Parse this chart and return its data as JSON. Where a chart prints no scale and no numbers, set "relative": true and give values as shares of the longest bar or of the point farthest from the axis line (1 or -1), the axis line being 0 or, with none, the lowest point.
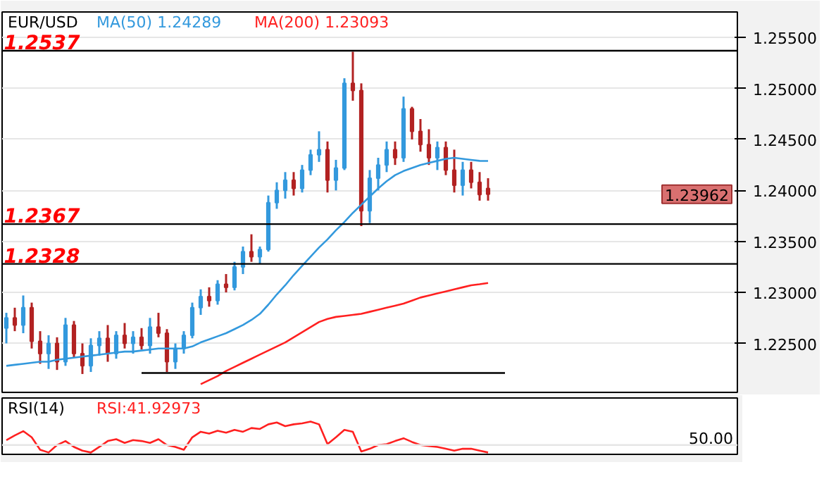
{
  "chart_data": [
    {
      "type": "candlestick",
      "title": "EUR/USD",
      "categories": [
        null,
        null,
        null,
        null,
        null,
        null,
        null,
        null,
        null,
        null,
        null,
        null,
        null,
        null,
        null,
        null,
        null,
        null,
        null,
        null,
        null,
        null,
        null,
        null,
        null,
        null,
        null,
        null,
        null,
        null,
        null,
        null,
        null,
        null,
        null,
        null,
        null,
        null,
        null,
        null,
        null,
        null,
        null,
        null,
        null,
        null,
        null,
        null,
        null,
        null,
        null,
        null,
        null,
        null,
        null,
        null,
        null,
        null,
        null,
        null,
        null,
        null,
        null,
        null,
        null,
        null,
        null,
        null,
        null,
        null,
        null,
        null,
        null,
        null,
        null,
        null,
        null,
        null,
        null,
        null,
        null,
        null,
        null,
        null,
        null,
        null,
        null
      ],
      "ohlc": [
        [
          1.2265,
          1.228,
          1.225,
          1.2275
        ],
        [
          1.2275,
          1.2285,
          1.2262,
          1.2268
        ],
        [
          1.2268,
          1.2297,
          1.226,
          1.2285
        ],
        [
          1.2285,
          1.229,
          1.2245,
          1.2252
        ],
        [
          1.2252,
          1.2262,
          1.223,
          1.224
        ],
        [
          1.224,
          1.2258,
          1.2225,
          1.225
        ],
        [
          1.225,
          1.2256,
          1.2224,
          1.2232
        ],
        [
          1.2232,
          1.2275,
          1.2228,
          1.2268
        ],
        [
          1.2268,
          1.2272,
          1.2236,
          1.224
        ],
        [
          1.224,
          1.225,
          1.222,
          1.2228
        ],
        [
          1.2228,
          1.2255,
          1.2222,
          1.2248
        ],
        [
          1.2248,
          1.2262,
          1.2238,
          1.2255
        ],
        [
          1.2255,
          1.2268,
          1.2232,
          1.224
        ],
        [
          1.224,
          1.2262,
          1.2235,
          1.2258
        ],
        [
          1.2258,
          1.227,
          1.2245,
          1.225
        ],
        [
          1.225,
          1.2262,
          1.224,
          1.2256
        ],
        [
          1.2256,
          1.2265,
          1.2244,
          1.2248
        ],
        [
          1.2248,
          1.2275,
          1.224,
          1.2266
        ],
        [
          1.2266,
          1.228,
          1.2256,
          1.226
        ],
        [
          1.226,
          1.2264,
          1.2222,
          1.2232
        ],
        [
          1.2232,
          1.225,
          1.2225,
          1.2245
        ],
        [
          1.2245,
          1.2262,
          1.224,
          1.2258
        ],
        [
          1.2258,
          1.229,
          1.2255,
          1.2285
        ],
        [
          1.2285,
          1.2303,
          1.2278,
          1.2296
        ],
        [
          1.2296,
          1.2305,
          1.2286,
          1.2292
        ],
        [
          1.2292,
          1.2312,
          1.2288,
          1.2308
        ],
        [
          1.2308,
          1.2318,
          1.23,
          1.2305
        ],
        [
          1.2305,
          1.233,
          1.2302,
          1.2325
        ],
        [
          1.2325,
          1.2345,
          1.2318,
          1.234
        ],
        [
          1.234,
          1.2357,
          1.233,
          1.2335
        ],
        [
          1.2335,
          1.2345,
          1.2328,
          1.2342
        ],
        [
          1.2342,
          1.2395,
          1.234,
          1.2388
        ],
        [
          1.2388,
          1.2408,
          1.2382,
          1.24
        ],
        [
          1.24,
          1.2418,
          1.2392,
          1.241
        ],
        [
          1.241,
          1.2418,
          1.2395,
          1.2402
        ],
        [
          1.2402,
          1.2425,
          1.2398,
          1.242
        ],
        [
          1.242,
          1.244,
          1.2415,
          1.2435
        ],
        [
          1.2435,
          1.2458,
          1.2428,
          1.244
        ],
        [
          1.244,
          1.2448,
          1.2398,
          1.241
        ],
        [
          1.241,
          1.243,
          1.24,
          1.2422
        ],
        [
          1.2422,
          1.251,
          1.242,
          1.2505
        ],
        [
          1.2505,
          1.2536,
          1.2488,
          1.2498
        ],
        [
          1.2498,
          1.2505,
          1.2365,
          1.238
        ],
        [
          1.238,
          1.242,
          1.2368,
          1.2412
        ],
        [
          1.2412,
          1.2432,
          1.24,
          1.2425
        ],
        [
          1.2425,
          1.2448,
          1.2418,
          1.244
        ],
        [
          1.244,
          1.2448,
          1.2425,
          1.2432
        ],
        [
          1.2432,
          1.2492,
          1.2428,
          1.248
        ],
        [
          1.248,
          1.2482,
          1.245,
          1.2458
        ],
        [
          1.2458,
          1.247,
          1.2438,
          1.2445
        ],
        [
          1.2445,
          1.246,
          1.2425,
          1.2432
        ],
        [
          1.2432,
          1.2448,
          1.242,
          1.2442
        ],
        [
          1.2442,
          1.2448,
          1.2415,
          1.242
        ],
        [
          1.242,
          1.244,
          1.2398,
          1.2405
        ],
        [
          1.2405,
          1.2428,
          1.2395,
          1.242
        ],
        [
          1.242,
          1.2428,
          1.2402,
          1.2408
        ],
        [
          1.2408,
          1.2418,
          1.239,
          1.2396
        ],
        [
          1.2402,
          1.2412,
          1.239,
          1.23962
        ],
        null,
        null,
        null,
        null,
        null,
        null,
        null,
        null,
        null,
        null,
        null,
        null,
        null,
        null,
        null,
        null,
        null,
        null,
        null,
        null,
        null,
        null,
        null,
        null,
        null,
        null,
        null,
        null,
        null
      ],
      "colors": [
        "#3399dd",
        "#b22222",
        "#3399dd",
        "#b22222",
        "#b22222",
        "#3399dd",
        "#b22222",
        "#3399dd",
        "#b22222",
        "#b22222",
        "#3399dd",
        "#3399dd",
        "#b22222",
        "#3399dd",
        "#b22222",
        "#3399dd",
        "#b22222",
        "#3399dd",
        "#b22222",
        "#b22222",
        "#3399dd",
        "#3399dd",
        "#3399dd",
        "#3399dd",
        "#b22222",
        "#3399dd",
        "#b22222",
        "#3399dd",
        "#3399dd",
        "#b22222",
        "#3399dd",
        "#3399dd",
        "#3399dd",
        "#3399dd",
        "#b22222",
        "#3399dd",
        "#3399dd",
        "#3399dd",
        "#b22222",
        "#3399dd",
        "#3399dd",
        "#b22222",
        "#b22222",
        "#3399dd",
        "#3399dd",
        "#3399dd",
        "#b22222",
        "#3399dd",
        "#b22222",
        "#b22222",
        "#b22222",
        "#3399dd",
        "#b22222",
        "#b22222",
        "#3399dd",
        "#b22222",
        "#b22222",
        "#b22222",
        null,
        null,
        null,
        null,
        null,
        null,
        null,
        null,
        null,
        null,
        null,
        null,
        null,
        null,
        null,
        null,
        null,
        null,
        null,
        null,
        null,
        null,
        null,
        null,
        null,
        null,
        null,
        null,
        null
      ],
      "series": [
        {
          "type": "line",
          "name": "MA(50) 1.24289",
          "color": "#3399dd",
          "values": [
            1.2228,
            1.2229,
            1.223,
            1.2231,
            1.2232,
            1.2232,
            1.2234,
            1.2235,
            1.2236,
            1.2237,
            1.2238,
            1.2239,
            1.224,
            1.2241,
            1.2242,
            1.2242,
            1.2243,
            1.2244,
            1.2245,
            1.2245,
            1.2245,
            1.2245,
            1.2247,
            1.2251,
            1.2254,
            1.2257,
            1.226,
            1.2264,
            1.2268,
            1.2273,
            1.2279,
            1.2288,
            1.2298,
            1.2307,
            1.2317,
            1.2326,
            1.2335,
            1.2344,
            1.2352,
            1.2361,
            1.2369,
            1.2378,
            1.2386,
            1.2394,
            1.2402,
            1.2409,
            1.2415,
            1.2419,
            1.2422,
            1.2425,
            1.2427,
            1.2429,
            1.2431,
            1.2432,
            1.2431,
            1.243,
            1.2429,
            1.24289,
            null,
            null,
            null,
            null,
            null,
            null,
            null,
            null,
            null,
            null,
            null,
            null,
            null,
            null,
            null,
            null,
            null,
            null,
            null,
            null,
            null,
            null,
            null,
            null,
            null,
            null,
            null,
            null,
            null
          ]
        },
        {
          "type": "line",
          "name": "MA(200) 1.23093",
          "color": "#ff2020",
          "values": [
            null,
            null,
            null,
            null,
            null,
            null,
            null,
            null,
            null,
            null,
            null,
            null,
            null,
            null,
            null,
            null,
            null,
            null,
            null,
            null,
            null,
            null,
            null,
            1.221,
            1.2214,
            1.2218,
            1.2223,
            1.2227,
            1.2231,
            1.2235,
            1.2239,
            1.2243,
            1.2247,
            1.2251,
            1.2256,
            1.2261,
            1.2266,
            1.2271,
            1.2274,
            1.2276,
            1.2277,
            1.2278,
            1.2279,
            1.2281,
            1.2283,
            1.2285,
            1.2287,
            1.2289,
            1.2292,
            1.2295,
            1.2297,
            1.2299,
            1.2301,
            1.2303,
            1.2305,
            1.2307,
            1.2308,
            1.23093,
            null,
            null,
            null,
            null,
            null,
            null,
            null,
            null,
            null,
            null,
            null,
            null,
            null,
            null,
            null,
            null,
            null,
            null,
            null,
            null,
            null,
            null,
            null,
            null,
            null,
            null,
            null,
            null,
            null
          ]
        },
        {
          "type": "line",
          "color": "#000000",
          "values": [
            null,
            null,
            null,
            null,
            null,
            null,
            null,
            null,
            null,
            null,
            null,
            null,
            null,
            null,
            null,
            null,
            1.2221,
            null,
            null,
            null,
            null,
            null,
            null,
            null,
            null,
            null,
            null,
            null,
            null,
            null,
            null,
            null,
            null,
            null,
            null,
            null,
            null,
            null,
            null,
            null,
            null,
            null,
            null,
            null,
            null,
            null,
            null,
            null,
            null,
            null,
            null,
            null,
            null,
            null,
            null,
            null,
            null,
            null,
            null,
            1.2221,
            null,
            null,
            null,
            null,
            null,
            null,
            null,
            null,
            null,
            null,
            null,
            null,
            null,
            null,
            null,
            null,
            null,
            null,
            null,
            null,
            null,
            null,
            null,
            null,
            null,
            null,
            null
          ]
        }
      ],
      "ylim": [
        1.2202,
        1.2575
      ],
      "yticks": [
        {
          "value": 1.225,
          "label": "1.22500"
        },
        {
          "value": 1.23,
          "label": "1.23000"
        },
        {
          "value": 1.235,
          "label": "1.23500"
        },
        {
          "value": 1.24,
          "label": "1.24000"
        },
        {
          "value": 1.245,
          "label": "1.24500"
        },
        {
          "value": 1.25,
          "label": "1.25000"
        },
        {
          "value": 1.255,
          "label": "1.25500"
        }
      ],
      "grid": "y",
      "tick_labels": "y",
      "ref_lines": [
        {
          "axis": "y",
          "value": 1.2537,
          "label": "1.2537",
          "color": "#000000"
        },
        {
          "axis": "y",
          "value": 1.2367,
          "label": "1.2367",
          "color": "#000000"
        },
        {
          "axis": "y",
          "value": 1.2328,
          "label": "1.2328",
          "color": "#000000"
        }
      ],
      "annotations": [
        "1.23962"
      ]
    },
    {
      "type": "line",
      "title": "RSI(14)",
      "categories": [
        null,
        null,
        null,
        null,
        null,
        null,
        null,
        null,
        null,
        null,
        null,
        null,
        null,
        null,
        null,
        null,
        null,
        null,
        null,
        null,
        null,
        null,
        null,
        null,
        null,
        null,
        null,
        null,
        null,
        null,
        null,
        null,
        null,
        null,
        null,
        null,
        null,
        null,
        null,
        null,
        null,
        null,
        null,
        null,
        null,
        null,
        null,
        null,
        null,
        null,
        null,
        null,
        null,
        null,
        null,
        null,
        null,
        null,
        null,
        null,
        null,
        null,
        null,
        null,
        null,
        null,
        null,
        null,
        null,
        null,
        null,
        null,
        null,
        null,
        null,
        null,
        null,
        null,
        null,
        null,
        null,
        null,
        null,
        null,
        null,
        null,
        null
      ],
      "series": [
        {
          "name": "RSI:41.92973",
          "color": "#ff2020",
          "values": [
            0.4,
            0.55,
            0.69,
            0.49,
            0.09,
            0.0,
            0.24,
            0.37,
            0.18,
            0.06,
            0.0,
            0.18,
            0.37,
            0.43,
            0.31,
            0.4,
            0.37,
            0.31,
            0.43,
            0.24,
            0.18,
            0.09,
            0.49,
            0.67,
            0.61,
            0.7,
            0.64,
            0.73,
            0.67,
            0.79,
            0.76,
            0.91,
            0.97,
            0.85,
            0.91,
            0.94,
            1.0,
            0.91,
            0.27,
            0.49,
            0.73,
            0.67,
            0.03,
            0.12,
            0.24,
            0.27,
            0.37,
            0.46,
            0.34,
            0.24,
            0.21,
            0.18,
            0.12,
            0.06,
            0.12,
            0.12,
            0.06,
            0.0,
            null,
            null,
            null,
            null,
            null,
            null,
            null,
            null,
            null,
            null,
            null,
            null,
            null,
            null,
            null,
            null,
            null,
            null,
            null,
            null,
            null,
            null,
            null,
            null,
            null,
            null,
            null,
            null,
            null
          ]
        }
      ],
      "relative": true,
      "ref_lines": [
        {
          "axis": "y",
          "value": 0.24,
          "color": "#e6e6e6"
        }
      ],
      "annotations": [
        "50.00"
      ]
    }
  ]
}
